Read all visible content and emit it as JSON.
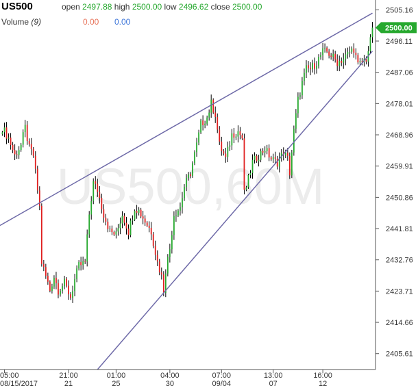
{
  "header": {
    "symbol": "US500",
    "open_label": "open",
    "open": "2497.88",
    "high_label": "high",
    "high": "2500.00",
    "low_label": "low",
    "low": "2496.62",
    "close_label": "close",
    "close": "2500.00",
    "volume_label": "Volume",
    "volume_period": "(9)",
    "volume_a": "0.00",
    "volume_b": "0.00"
  },
  "watermark": "US500,60M",
  "last_price_label": "2500.00",
  "colors": {
    "up": "#26a82e",
    "down": "#e02020",
    "wick": "#000000",
    "trendline": "#6e6aa8",
    "axis": "#555555",
    "tag": "#26a82e"
  },
  "chart_data": {
    "type": "candlestick",
    "ylim": [
      2401.0,
      2508.0
    ],
    "y_ticks": [
      2505.16,
      2496.11,
      2487.06,
      2478.01,
      2468.96,
      2459.91,
      2450.86,
      2441.81,
      2432.76,
      2423.71,
      2414.66,
      2405.61
    ],
    "x_ticks": [
      {
        "top": "05:00",
        "bottom": "08/15/2017"
      },
      {
        "top": "21:00",
        "bottom": "21"
      },
      {
        "top": "01:00",
        "bottom": "25"
      },
      {
        "top": "04:00",
        "bottom": "30"
      },
      {
        "top": "07:00",
        "bottom": "09/04"
      },
      {
        "top": "13:00",
        "bottom": "07"
      },
      {
        "top": "16:00",
        "bottom": "12"
      }
    ],
    "n_bars": 180,
    "anchors": [
      [
        0,
        2471
      ],
      [
        3,
        2468
      ],
      [
        6,
        2463
      ],
      [
        9,
        2466
      ],
      [
        11,
        2471
      ],
      [
        13,
        2465
      ],
      [
        15,
        2463
      ],
      [
        18,
        2448
      ],
      [
        19,
        2432
      ],
      [
        21,
        2428
      ],
      [
        23,
        2424
      ],
      [
        25,
        2428
      ],
      [
        27,
        2424
      ],
      [
        30,
        2426
      ],
      [
        33,
        2422
      ],
      [
        35,
        2427
      ],
      [
        37,
        2431
      ],
      [
        40,
        2432
      ],
      [
        42,
        2446
      ],
      [
        44,
        2455
      ],
      [
        46,
        2453
      ],
      [
        49,
        2446
      ],
      [
        52,
        2441
      ],
      [
        55,
        2440
      ],
      [
        58,
        2446
      ],
      [
        61,
        2441
      ],
      [
        64,
        2448
      ],
      [
        66,
        2447
      ],
      [
        69,
        2444
      ],
      [
        72,
        2441
      ],
      [
        75,
        2432
      ],
      [
        77,
        2428
      ],
      [
        78,
        2424
      ],
      [
        79,
        2430
      ],
      [
        81,
        2436
      ],
      [
        83,
        2446
      ],
      [
        86,
        2448
      ],
      [
        88,
        2454
      ],
      [
        91,
        2458
      ],
      [
        94,
        2466
      ],
      [
        96,
        2472
      ],
      [
        99,
        2474
      ],
      [
        101,
        2478
      ],
      [
        103,
        2475
      ],
      [
        105,
        2466
      ],
      [
        108,
        2462
      ],
      [
        111,
        2469
      ],
      [
        114,
        2470
      ],
      [
        116,
        2468
      ],
      [
        117,
        2452
      ],
      [
        119,
        2456
      ],
      [
        121,
        2461
      ],
      [
        124,
        2463
      ],
      [
        127,
        2465
      ],
      [
        130,
        2462
      ],
      [
        133,
        2461
      ],
      [
        136,
        2464
      ],
      [
        138,
        2462
      ],
      [
        139,
        2458
      ],
      [
        141,
        2470
      ],
      [
        143,
        2479
      ],
      [
        145,
        2484
      ],
      [
        147,
        2488
      ],
      [
        149,
        2488
      ],
      [
        152,
        2490
      ],
      [
        155,
        2493
      ],
      [
        157,
        2493
      ],
      [
        159,
        2492
      ],
      [
        162,
        2490
      ],
      [
        165,
        2491
      ],
      [
        168,
        2493
      ],
      [
        170,
        2494
      ],
      [
        172,
        2489
      ],
      [
        174,
        2490
      ],
      [
        176,
        2491
      ],
      [
        178,
        2496
      ],
      [
        179,
        2500
      ]
    ],
    "trendlines": [
      {
        "from": [
          0,
          2443.1
        ],
        "to": [
          179,
          2504.2
        ]
      },
      {
        "from": [
          46,
          2401.0
        ],
        "to": [
          179,
          2493.2
        ]
      }
    ]
  }
}
